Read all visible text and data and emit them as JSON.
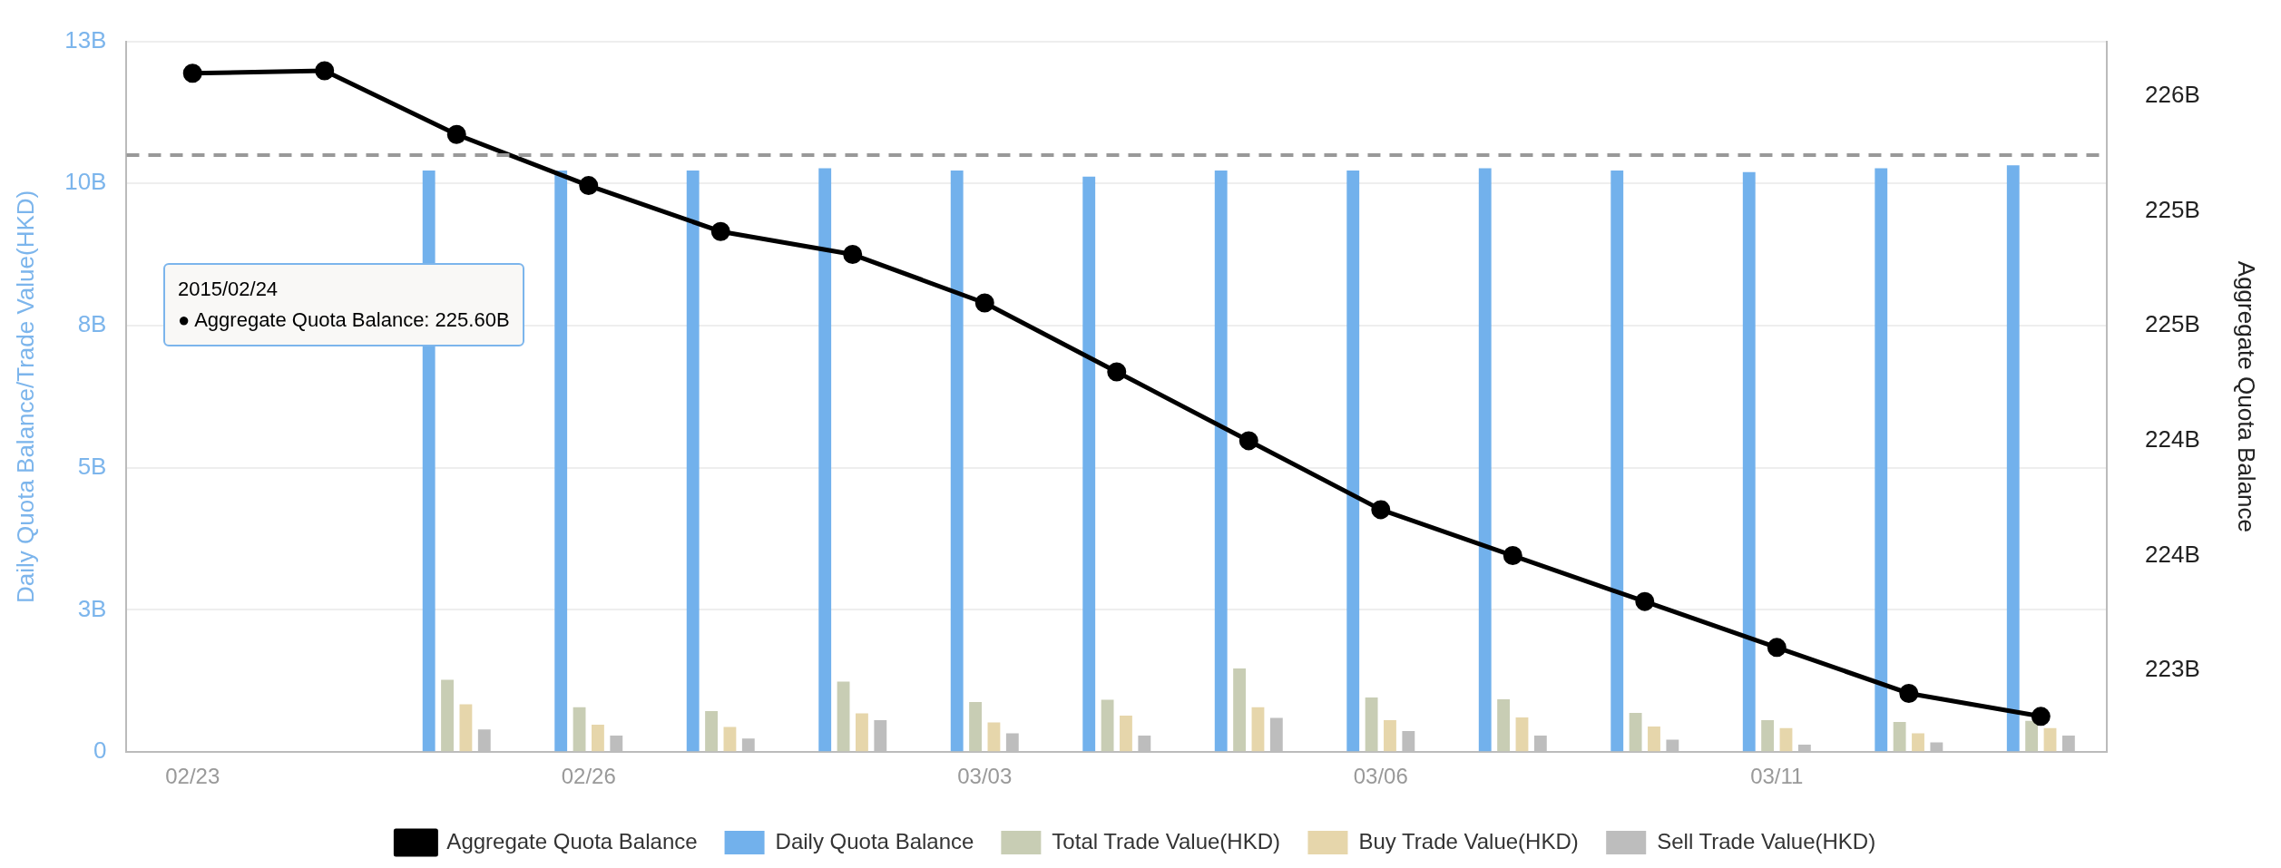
{
  "chart_data": {
    "type": "bar",
    "categories": [
      "02/23",
      null,
      null,
      "02/26",
      null,
      null,
      "03/03",
      null,
      null,
      "03/06",
      null,
      null,
      "03/11",
      null,
      null
    ],
    "series": [
      {
        "name": "Daily Quota Balance",
        "color": "#72b1ec",
        "values": [
          null,
          null,
          10.23,
          10.23,
          10.23,
          10.27,
          10.23,
          10.12,
          10.23,
          10.23,
          10.27,
          10.23,
          10.2,
          10.27,
          10.32
        ]
      },
      {
        "name": "Total Trade Value(HKD)",
        "color": "#c8cdb4",
        "values": [
          null,
          null,
          1.27,
          0.79,
          0.72,
          1.24,
          0.88,
          0.92,
          1.47,
          0.96,
          0.93,
          0.69,
          0.56,
          0.53,
          0.55
        ]
      },
      {
        "name": "Buy Trade Value(HKD)",
        "color": "#e6d6ab",
        "values": [
          null,
          null,
          0.84,
          0.48,
          0.44,
          0.68,
          0.52,
          0.64,
          0.79,
          0.56,
          0.61,
          0.45,
          0.42,
          0.33,
          0.42
        ]
      },
      {
        "name": "Sell Trade Value(HKD)",
        "color": "#bdbdbd",
        "values": [
          null,
          null,
          0.4,
          0.29,
          0.24,
          0.56,
          0.33,
          0.29,
          0.6,
          0.37,
          0.29,
          0.22,
          0.13,
          0.17,
          0.29
        ]
      },
      {
        "name": "Aggregate Quota Balance",
        "type": "line",
        "axis": "y2",
        "color": "#000000",
        "values": [
          225.59,
          225.6,
          225.35,
          225.15,
          224.97,
          224.88,
          224.69,
          224.42,
          224.15,
          223.88,
          223.7,
          223.52,
          223.34,
          223.16,
          223.07
        ]
      }
    ],
    "ylabel": "Daily Quota Balance/Trade Value(HKD)",
    "y2label": "Aggregate Quota Balance",
    "ylim": [
      0,
      12.5
    ],
    "yticks": [
      0,
      {
        "value": 2.5,
        "label": "3B"
      },
      {
        "value": 5,
        "label": "5B"
      },
      {
        "value": 7.5,
        "label": "8B"
      },
      {
        "value": 10,
        "label": "10B"
      },
      {
        "value": 12.5,
        "label": "13B"
      }
    ],
    "y2lim": [
      222.93,
      225.715
    ],
    "y2ticks": [
      {
        "value": 223.25,
        "label": "223B"
      },
      {
        "value": 223.7,
        "label": "224B"
      },
      {
        "value": 224.15,
        "label": "224B"
      },
      {
        "value": 224.6,
        "label": "225B"
      },
      {
        "value": 225.05,
        "label": "225B"
      },
      {
        "value": 225.5,
        "label": "226B"
      }
    ],
    "ref_lines": [
      {
        "axis": "y",
        "value": 10.5,
        "color": "#999999",
        "line_style": "dashed"
      }
    ],
    "annotations": [
      "2015/02/24",
      "● Aggregate Quota Balance: 225.60B"
    ],
    "grid": "y",
    "legend": "bottom",
    "marker": "circle"
  }
}
